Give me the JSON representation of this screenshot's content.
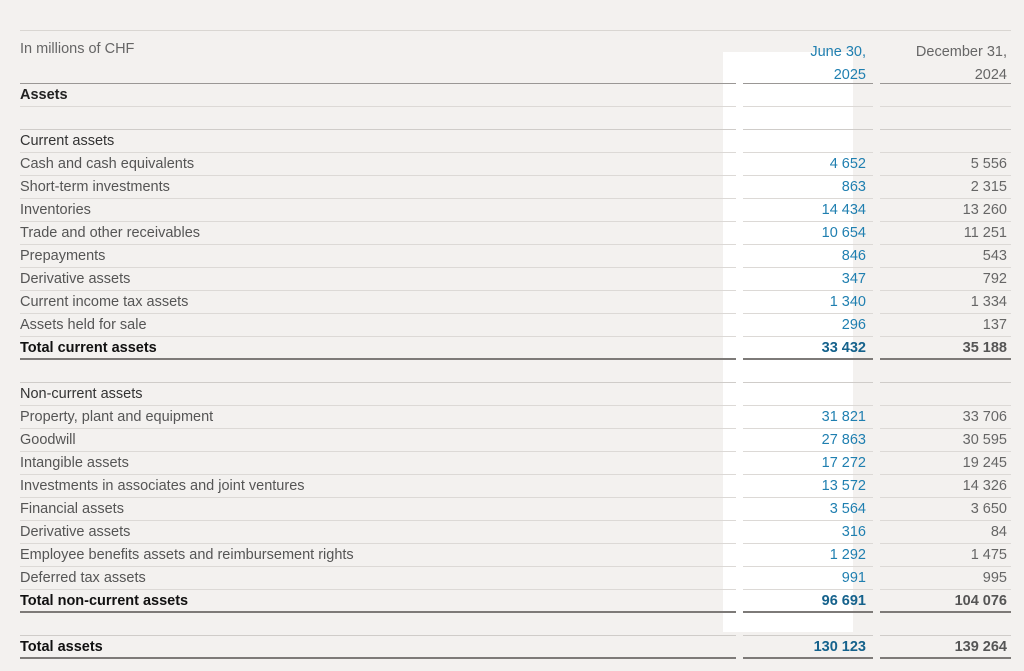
{
  "header": {
    "unit": "In millions of CHF",
    "col_current_line1": "June 30,",
    "col_current_line2": "2025",
    "col_prev_line1": "December 31,",
    "col_prev_line2": "2024"
  },
  "colors": {
    "current_period": "#1f7fb0",
    "background": "#f3f1ef",
    "highlight_column": "#ffffff"
  },
  "rows": [
    {
      "type": "section",
      "label": "Assets",
      "v1": "",
      "v2": ""
    },
    {
      "type": "spacer",
      "label": "",
      "v1": "",
      "v2": ""
    },
    {
      "type": "subhead",
      "label": "Current assets",
      "v1": "",
      "v2": ""
    },
    {
      "type": "item",
      "label": "Cash and cash equivalents",
      "v1": "4 652",
      "v2": "5 556"
    },
    {
      "type": "item",
      "label": "Short-term investments",
      "v1": "863",
      "v2": "2 315"
    },
    {
      "type": "item",
      "label": "Inventories",
      "v1": "14 434",
      "v2": "13 260"
    },
    {
      "type": "item",
      "label": "Trade and other receivables",
      "v1": "10 654",
      "v2": "11 251"
    },
    {
      "type": "item",
      "label": "Prepayments",
      "v1": "846",
      "v2": "543"
    },
    {
      "type": "item",
      "label": "Derivative assets",
      "v1": "347",
      "v2": "792"
    },
    {
      "type": "item",
      "label": "Current income tax assets",
      "v1": "1 340",
      "v2": "1 334"
    },
    {
      "type": "item",
      "label": "Assets held for sale",
      "v1": "296",
      "v2": "137"
    },
    {
      "type": "total",
      "label": "Total current assets",
      "v1": "33 432",
      "v2": "35 188"
    },
    {
      "type": "spacer",
      "label": "",
      "v1": "",
      "v2": ""
    },
    {
      "type": "subhead",
      "label": "Non-current assets",
      "v1": "",
      "v2": ""
    },
    {
      "type": "item",
      "label": "Property, plant and equipment",
      "v1": "31 821",
      "v2": "33 706"
    },
    {
      "type": "item",
      "label": "Goodwill",
      "v1": "27 863",
      "v2": "30 595"
    },
    {
      "type": "item",
      "label": "Intangible assets",
      "v1": "17 272",
      "v2": "19 245"
    },
    {
      "type": "item",
      "label": "Investments in associates and joint ventures",
      "v1": "13 572",
      "v2": "14 326"
    },
    {
      "type": "item",
      "label": "Financial assets",
      "v1": "3 564",
      "v2": "3 650"
    },
    {
      "type": "item",
      "label": "Derivative assets",
      "v1": "316",
      "v2": "84"
    },
    {
      "type": "item",
      "label": "Employee benefits assets and reimbursement rights",
      "v1": "1 292",
      "v2": "1 475"
    },
    {
      "type": "item",
      "label": "Deferred tax assets",
      "v1": "991",
      "v2": "995"
    },
    {
      "type": "total",
      "label": "Total non-current assets",
      "v1": "96 691",
      "v2": "104 076"
    },
    {
      "type": "spacer",
      "label": "",
      "v1": "",
      "v2": ""
    },
    {
      "type": "total",
      "label": "Total assets",
      "v1": "130 123",
      "v2": "139 264"
    }
  ]
}
